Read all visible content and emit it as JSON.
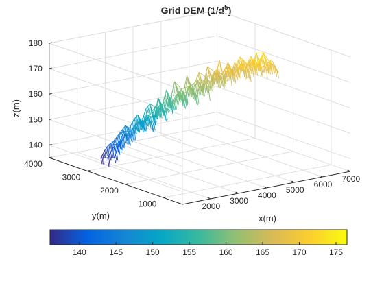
{
  "chart_data": {
    "type": "surface-mesh-3d",
    "title": "Grid DEM (1/d",
    "title_superscript": "5",
    "title_suffix": ")",
    "xlabel": "x(m)",
    "ylabel": "y(m)",
    "zlabel": "z(m)",
    "xlim": [
      1000,
      7000
    ],
    "ylim": [
      500,
      4000
    ],
    "zlim": [
      135,
      180
    ],
    "xticks": [
      {
        "value": 2000,
        "label": "2000"
      },
      {
        "value": 3000,
        "label": "3000"
      },
      {
        "value": 4000,
        "label": "4000"
      },
      {
        "value": 5000,
        "label": "5000"
      },
      {
        "value": 6000,
        "label": "6000"
      },
      {
        "value": 7000,
        "label": "7000"
      }
    ],
    "yticks": [
      {
        "value": 1000,
        "label": "1000"
      },
      {
        "value": 2000,
        "label": "2000"
      },
      {
        "value": 3000,
        "label": "3000"
      },
      {
        "value": 4000,
        "label": "4000"
      }
    ],
    "zticks": [
      {
        "value": 140,
        "label": "140"
      },
      {
        "value": 150,
        "label": "150"
      },
      {
        "value": 160,
        "label": "160"
      },
      {
        "value": 170,
        "label": "170"
      },
      {
        "value": 180,
        "label": "180"
      }
    ],
    "colorbar": {
      "colormap": "parula",
      "range": [
        136,
        176.5
      ],
      "ticks": [
        {
          "value": 140,
          "label": "140"
        },
        {
          "value": 145,
          "label": "145"
        },
        {
          "value": 150,
          "label": "150"
        },
        {
          "value": 155,
          "label": "155"
        },
        {
          "value": 160,
          "label": "160"
        },
        {
          "value": 165,
          "label": "165"
        },
        {
          "value": 170,
          "label": "170"
        },
        {
          "value": 175,
          "label": "175"
        }
      ],
      "stops": [
        "#352a87",
        "#0363e1",
        "#1485d4",
        "#06a7c6",
        "#38b99e",
        "#92bf73",
        "#d9ba56",
        "#fcce2e",
        "#f9fb0e"
      ]
    },
    "surface": {
      "x_start": 2000,
      "x_end": 6500,
      "y_start": 3200,
      "y_end": 2200,
      "profile_z": [
        [
          138,
          143,
          145,
          147,
          148,
          150,
          152,
          151,
          154,
          153,
          157,
          156,
          158,
          160,
          157,
          161,
          162,
          158,
          164,
          163,
          160,
          165,
          166,
          162,
          168,
          170,
          166,
          167,
          171,
          168,
          169,
          172,
          170,
          168,
          173,
          171,
          174,
          169,
          171,
          170,
          167
        ],
        [
          137,
          140,
          142,
          143,
          147,
          145,
          146,
          149,
          151,
          150,
          152,
          148,
          155,
          157,
          153,
          158,
          156,
          160,
          162,
          159,
          163,
          161,
          165,
          162,
          166,
          164,
          168,
          165,
          167,
          170,
          166,
          171,
          168,
          172,
          170,
          173,
          169,
          171,
          174,
          170,
          171
        ],
        [
          136,
          139,
          141,
          142,
          144,
          146,
          148,
          147,
          150,
          152,
          149,
          154,
          156,
          150,
          158,
          155,
          161,
          157,
          164,
          160,
          158,
          166,
          162,
          163,
          167,
          161,
          169,
          165,
          166,
          171,
          164,
          170,
          167,
          169,
          172,
          166,
          170,
          168,
          173,
          167,
          168
        ]
      ]
    }
  }
}
